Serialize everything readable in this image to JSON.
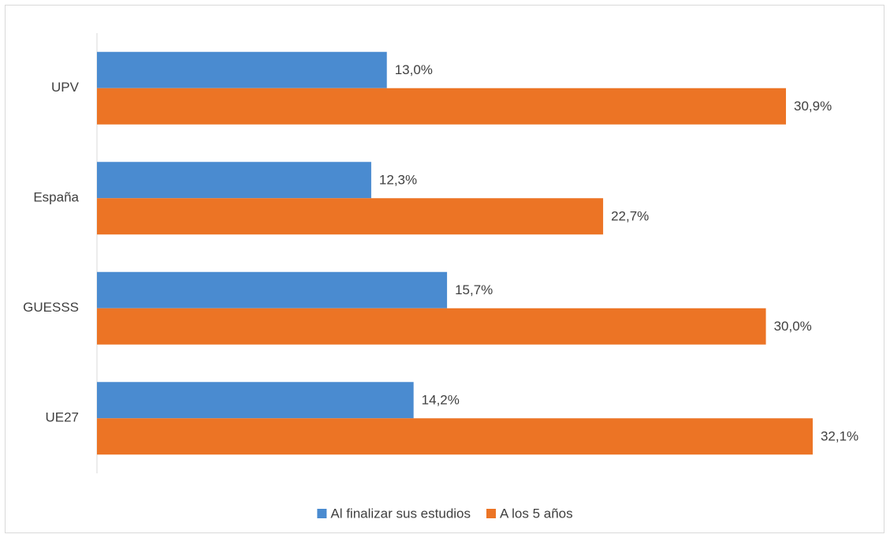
{
  "chart_data": {
    "type": "bar",
    "orientation": "horizontal",
    "categories": [
      "UPV",
      "España",
      "GUESSS",
      "UE27"
    ],
    "series": [
      {
        "name": "Al finalizar sus estudios",
        "color": "#4a8bd0",
        "values": [
          13.0,
          12.3,
          15.7,
          14.2
        ],
        "value_labels": [
          "13,0%",
          "12,3%",
          "15,7%",
          "14,2%"
        ]
      },
      {
        "name": "A los 5 años",
        "color": "#ec7425",
        "values": [
          30.9,
          22.7,
          30.0,
          32.1
        ],
        "value_labels": [
          "30,9%",
          "22,7%",
          "30,0%",
          "32,1%"
        ]
      }
    ],
    "xlim": [
      0,
      35
    ],
    "legend": "bottom"
  }
}
